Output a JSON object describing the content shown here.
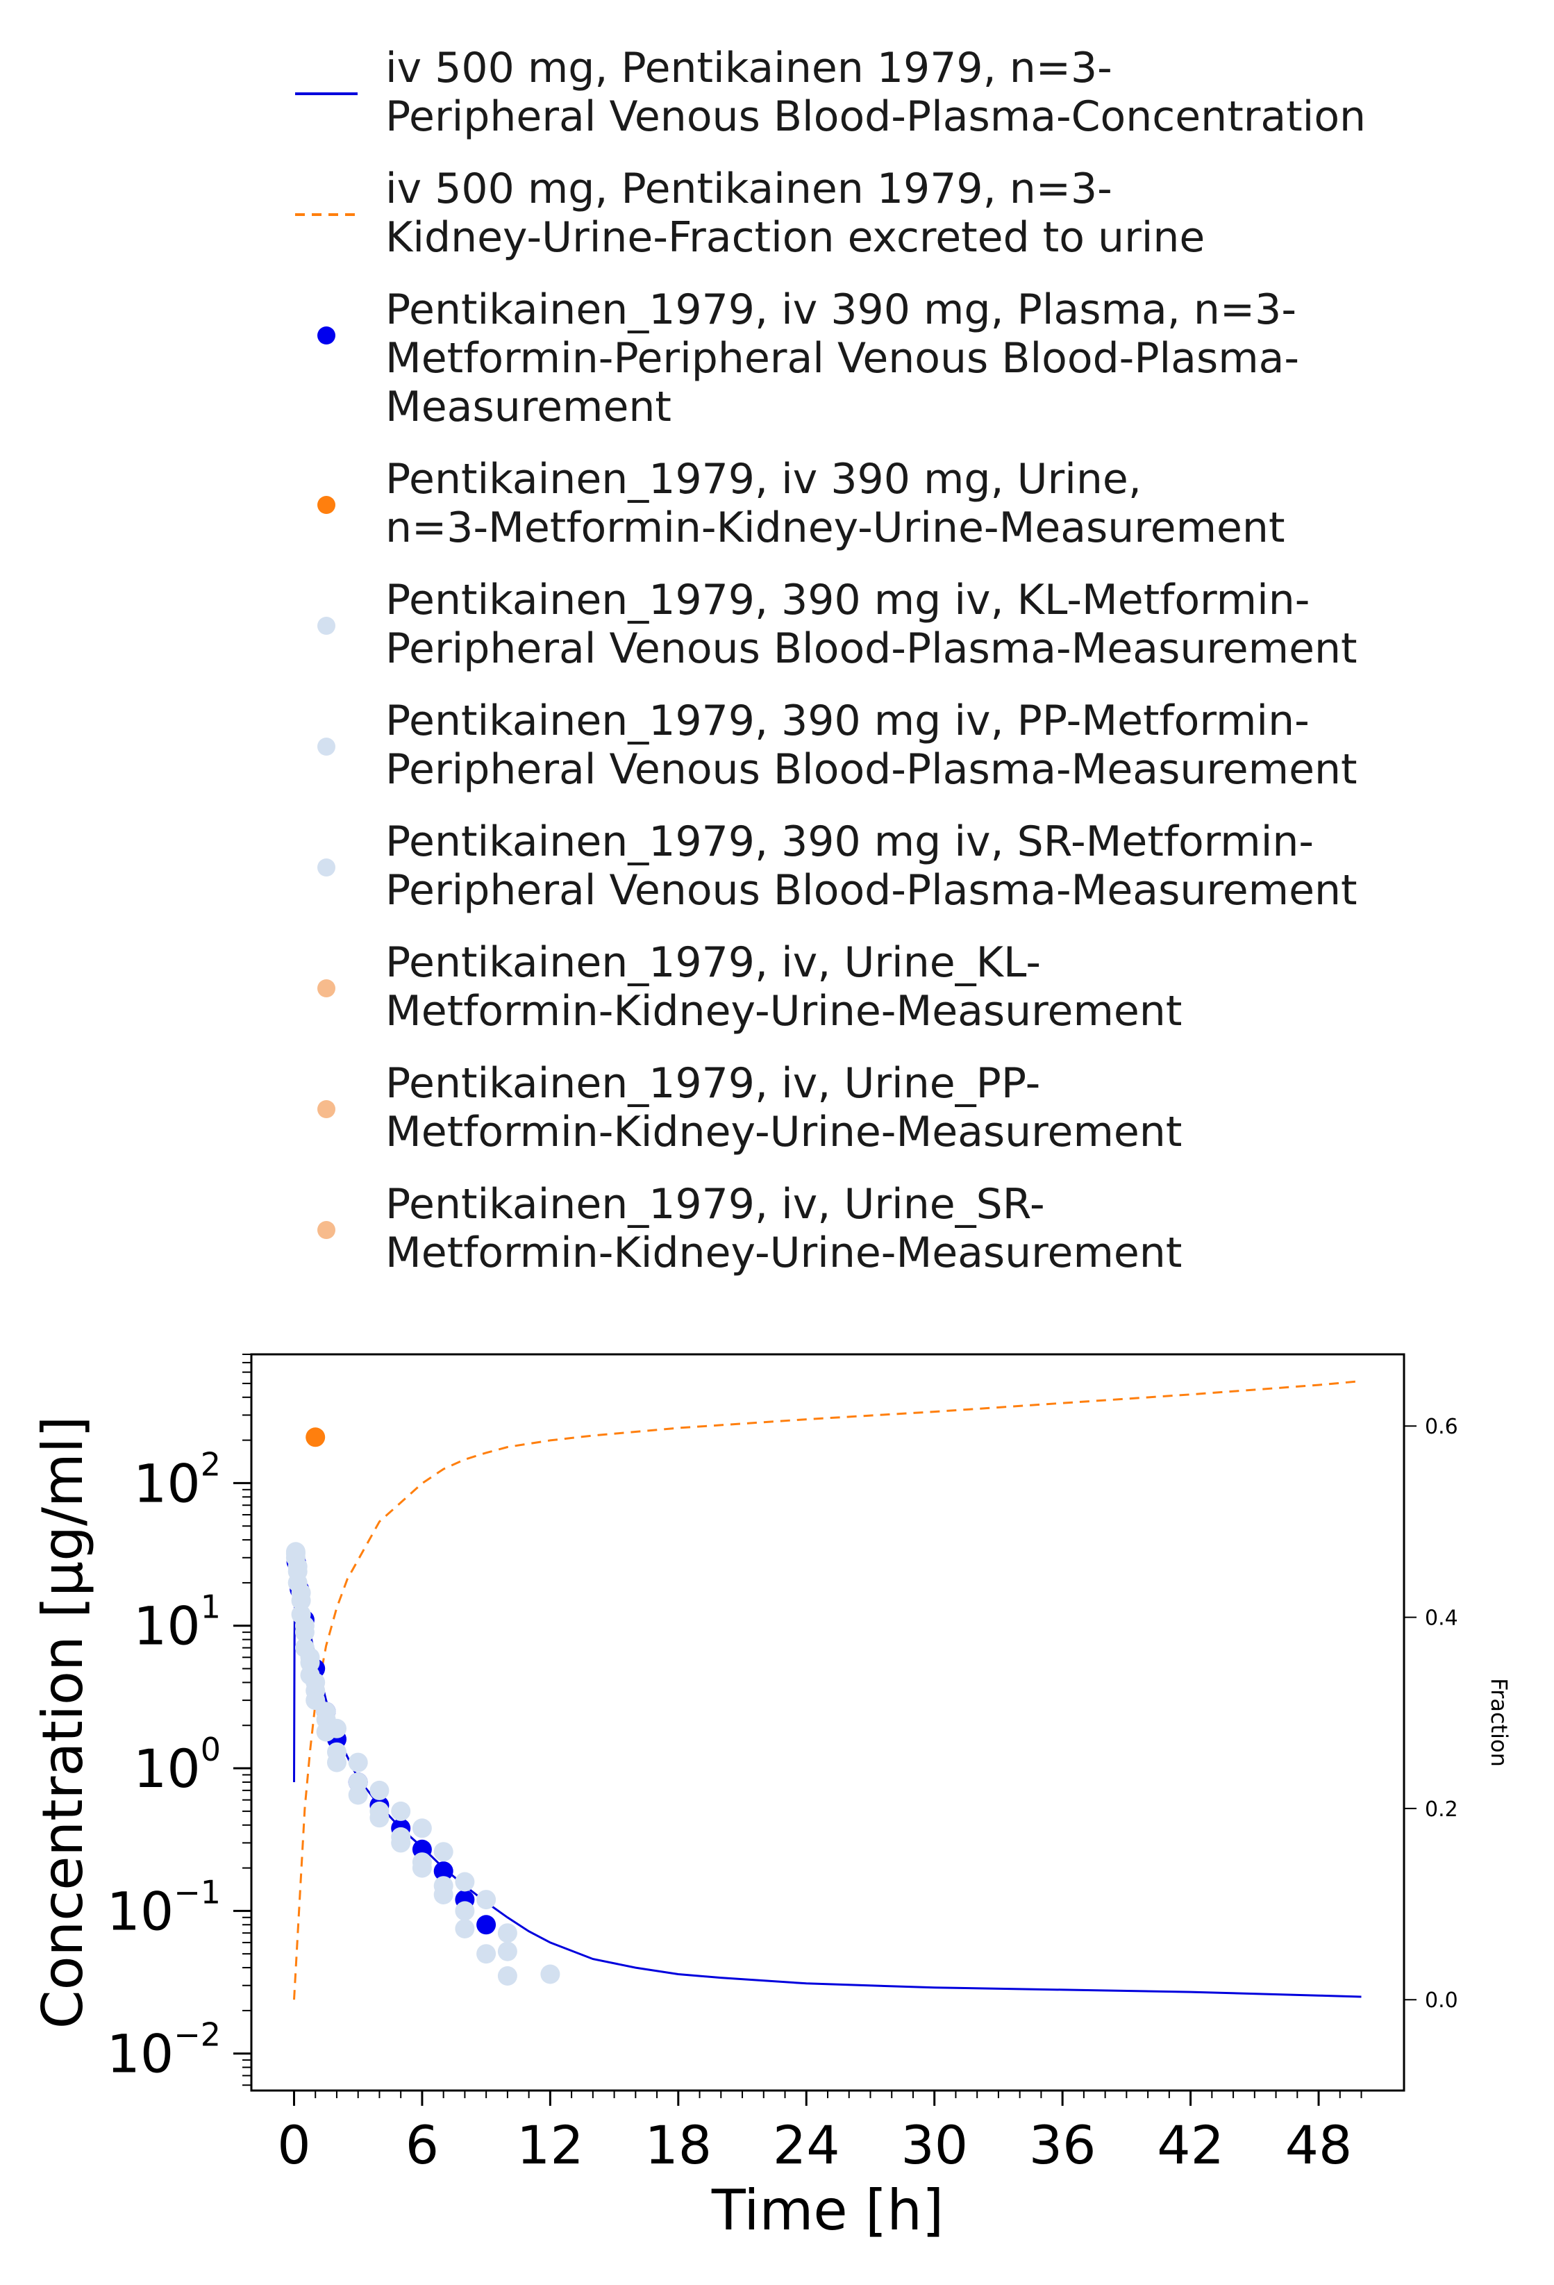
{
  "chart_data": {
    "type": "scatter",
    "title": "",
    "xlabel": "Time [h]",
    "ylabel": "Concentration [µg/ml]",
    "y2label": "Fraction",
    "xlim": [
      -2,
      52
    ],
    "x_ticks": [
      0,
      6,
      12,
      18,
      24,
      30,
      36,
      42,
      48
    ],
    "yscale": "log",
    "ylim": [
      0.0055,
      800
    ],
    "y_ticks": [
      {
        "value": 0.01,
        "base": "10",
        "exp": "−2"
      },
      {
        "value": 0.1,
        "base": "10",
        "exp": "−1"
      },
      {
        "value": 1,
        "base": "10",
        "exp": "0"
      },
      {
        "value": 10,
        "base": "10",
        "exp": "1"
      },
      {
        "value": 100,
        "base": "10",
        "exp": "2"
      }
    ],
    "y2lim": [
      -0.095,
      0.675
    ],
    "y2_ticks": [
      "0.0",
      "0.2",
      "0.4",
      "0.6"
    ],
    "grid": false,
    "legend_position": "top",
    "series": [
      {
        "name_lines": [
          "iv 500 mg, Pentikainen 1979, n=3-",
          "Peripheral Venous Blood-Plasma-Concentration"
        ],
        "kind": "line",
        "dash": "solid",
        "axis": "left",
        "color": "#0000dd",
        "x": [
          0,
          0.02,
          0.05,
          0.1,
          0.3,
          0.5,
          1,
          1.5,
          2,
          3,
          4,
          5,
          6,
          7,
          8,
          9,
          10,
          11,
          12,
          14,
          16,
          18,
          20,
          24,
          30,
          36,
          42,
          48,
          50
        ],
        "y": [
          0.8,
          8,
          25,
          23,
          18,
          13,
          6,
          3,
          1.7,
          0.85,
          0.55,
          0.38,
          0.28,
          0.2,
          0.15,
          0.115,
          0.09,
          0.072,
          0.06,
          0.046,
          0.04,
          0.036,
          0.034,
          0.031,
          0.029,
          0.028,
          0.027,
          0.0255,
          0.025
        ]
      },
      {
        "name_lines": [
          "iv 500 mg, Pentikainen 1979, n=3-",
          "Kidney-Urine-Fraction excreted to urine"
        ],
        "kind": "line",
        "dash": "dashed",
        "axis": "right",
        "color": "#ff7f0e",
        "x": [
          0,
          0.25,
          0.5,
          0.75,
          1,
          1.5,
          2,
          2.5,
          3,
          3.5,
          4,
          5,
          6,
          7,
          8,
          9,
          10,
          12,
          14,
          16,
          18,
          20,
          24,
          30,
          36,
          42,
          48,
          50
        ],
        "y": [
          0.0,
          0.1,
          0.2,
          0.26,
          0.31,
          0.37,
          0.41,
          0.44,
          0.46,
          0.48,
          0.5,
          0.52,
          0.54,
          0.555,
          0.565,
          0.572,
          0.578,
          0.585,
          0.59,
          0.594,
          0.598,
          0.601,
          0.607,
          0.615,
          0.624,
          0.633,
          0.643,
          0.647
        ]
      },
      {
        "name_lines": [
          "Pentikainen_1979, iv 390 mg, Plasma, n=3-",
          "Metformin-Peripheral Venous Blood-Plasma-",
          "Measurement"
        ],
        "kind": "points",
        "axis": "left",
        "color": "#0000ee",
        "x": [
          0.1,
          0.25,
          0.5,
          1,
          1.5,
          2,
          3,
          4,
          5,
          6,
          7,
          8,
          9
        ],
        "y": [
          28,
          18,
          11,
          5,
          2.5,
          1.6,
          0.8,
          0.55,
          0.38,
          0.27,
          0.19,
          0.12,
          0.08
        ]
      },
      {
        "name_lines": [
          "Pentikainen_1979, iv 390 mg, Urine,",
          "n=3-Metformin-Kidney-Urine-Measurement"
        ],
        "kind": "points",
        "axis": "left",
        "color": "#ff7f0e",
        "x": [
          1
        ],
        "y": [
          210
        ]
      },
      {
        "name_lines": [
          "Pentikainen_1979, 390 mg iv, KL-Metformin-",
          "Peripheral Venous Blood-Plasma-Measurement"
        ],
        "kind": "points",
        "axis": "left",
        "color": "#d3e0f0",
        "x": [
          0.08,
          0.17,
          0.33,
          0.5,
          0.75,
          1,
          1.5,
          2,
          3,
          4,
          5,
          6,
          7,
          8,
          10
        ],
        "y": [
          32,
          24,
          15,
          9,
          5.5,
          3.5,
          2.2,
          1.3,
          0.8,
          0.5,
          0.33,
          0.22,
          0.15,
          0.1,
          0.052
        ]
      },
      {
        "name_lines": [
          "Pentikainen_1979, 390 mg iv, PP-Metformin-",
          "Peripheral Venous Blood-Plasma-Measurement"
        ],
        "kind": "points",
        "axis": "left",
        "color": "#d3e0f0",
        "x": [
          0.08,
          0.17,
          0.33,
          0.5,
          0.75,
          1,
          1.5,
          2,
          3,
          4,
          5,
          6,
          7,
          8,
          9,
          10
        ],
        "y": [
          30,
          20,
          12,
          7,
          4.5,
          3,
          1.8,
          1.1,
          0.65,
          0.45,
          0.3,
          0.2,
          0.13,
          0.075,
          0.05,
          0.035
        ]
      },
      {
        "name_lines": [
          "Pentikainen_1979, 390 mg iv, SR-Metformin-",
          "Peripheral Venous Blood-Plasma-Measurement"
        ],
        "kind": "points",
        "axis": "left",
        "color": "#d3e0f0",
        "x": [
          0.08,
          0.17,
          0.33,
          0.5,
          0.75,
          1,
          1.5,
          2,
          3,
          4,
          5,
          6,
          7,
          8,
          9,
          10,
          12
        ],
        "y": [
          33,
          26,
          17,
          10,
          6,
          4,
          2.5,
          1.9,
          1.1,
          0.7,
          0.5,
          0.38,
          0.26,
          0.16,
          0.12,
          0.07,
          0.036
        ]
      },
      {
        "name_lines": [
          "Pentikainen_1979, iv, Urine_KL-",
          "Metformin-Kidney-Urine-Measurement"
        ],
        "kind": "points",
        "axis": "left",
        "color": "#f7bb8c",
        "x": [],
        "y": []
      },
      {
        "name_lines": [
          "Pentikainen_1979, iv, Urine_PP-",
          "Metformin-Kidney-Urine-Measurement"
        ],
        "kind": "points",
        "axis": "left",
        "color": "#f7bb8c",
        "x": [],
        "y": []
      },
      {
        "name_lines": [
          "Pentikainen_1979, iv, Urine_SR-",
          "Metformin-Kidney-Urine-Measurement"
        ],
        "kind": "points",
        "axis": "left",
        "color": "#f7bb8c",
        "x": [],
        "y": []
      }
    ]
  }
}
